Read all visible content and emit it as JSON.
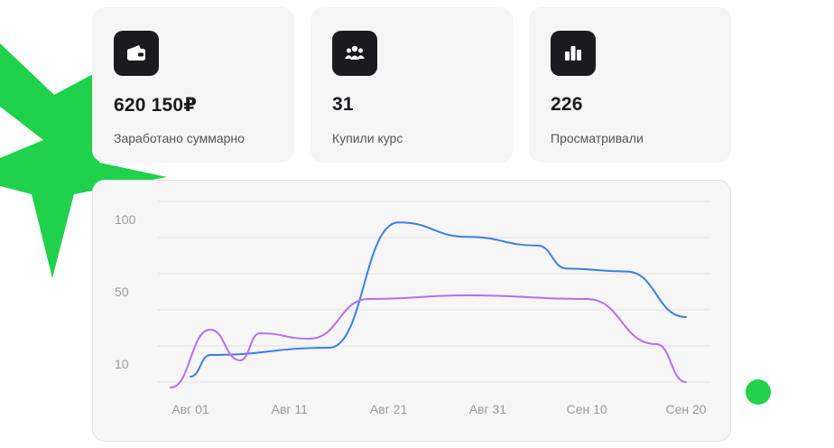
{
  "stats": [
    {
      "value": "620 150₽",
      "label": "Заработано суммарно",
      "icon": "wallet-icon"
    },
    {
      "value": "31",
      "label": "Купили курс",
      "icon": "users-icon"
    },
    {
      "value": "226",
      "label": "Просматривали",
      "icon": "bar-chart-icon"
    }
  ],
  "colors": {
    "accent_green": "#1fd14b",
    "series_blue": "#3c7ee6",
    "series_purple": "#b56ef5",
    "card_bg": "#f5f5f5",
    "icon_bg": "#1b1b1f"
  },
  "chart_data": {
    "type": "line",
    "y_ticks": [
      "100",
      "50",
      "10"
    ],
    "x_ticks": [
      "Авг 01",
      "Авг 11",
      "Авг 21",
      "Авг 31",
      "Сен 10",
      "Сен 20"
    ],
    "grid": true,
    "series": [
      {
        "color": "#3c7ee6",
        "x": [
          "Авг 01",
          "Авг 03",
          "Авг 15",
          "Авг 22",
          "Авг 29",
          "Сен 05",
          "Сен 08",
          "Сен 14",
          "Сен 20"
        ],
        "values": [
          3,
          15,
          19,
          98,
          88,
          82,
          66,
          64,
          36
        ]
      },
      {
        "color": "#b56ef5",
        "x": [
          "Июл 30",
          "Авг 03",
          "Авг 06",
          "Авг 08",
          "Авг 13",
          "Авг 19",
          "Авг 29",
          "Сен 10",
          "Сен 17",
          "Сен 20"
        ],
        "values": [
          -3,
          29,
          12,
          27,
          24,
          46,
          48,
          46,
          21,
          0
        ]
      }
    ]
  }
}
